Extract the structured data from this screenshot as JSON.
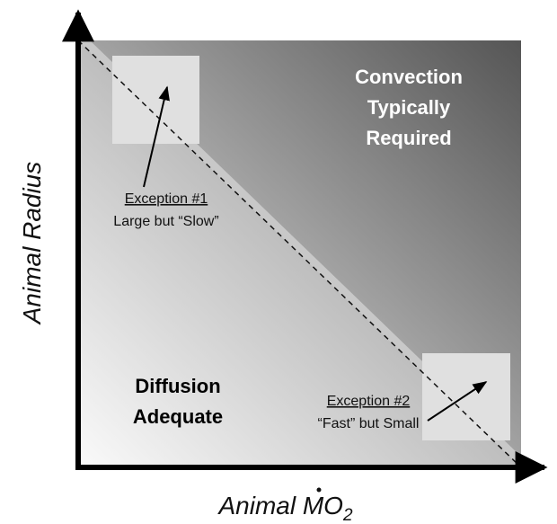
{
  "regions": {
    "convection": [
      "Convection",
      "Typically",
      "Required"
    ],
    "diffusion": [
      "Diffusion",
      "Adequate"
    ]
  },
  "exceptions": [
    {
      "title": "Exception #1",
      "text": "Large but “Slow”"
    },
    {
      "title": "Exception #2",
      "text": "“Fast” but Small"
    }
  ],
  "y_label": "Animal Radius",
  "x_label": {
    "text": "Animal MO",
    "subscript": "2"
  }
}
